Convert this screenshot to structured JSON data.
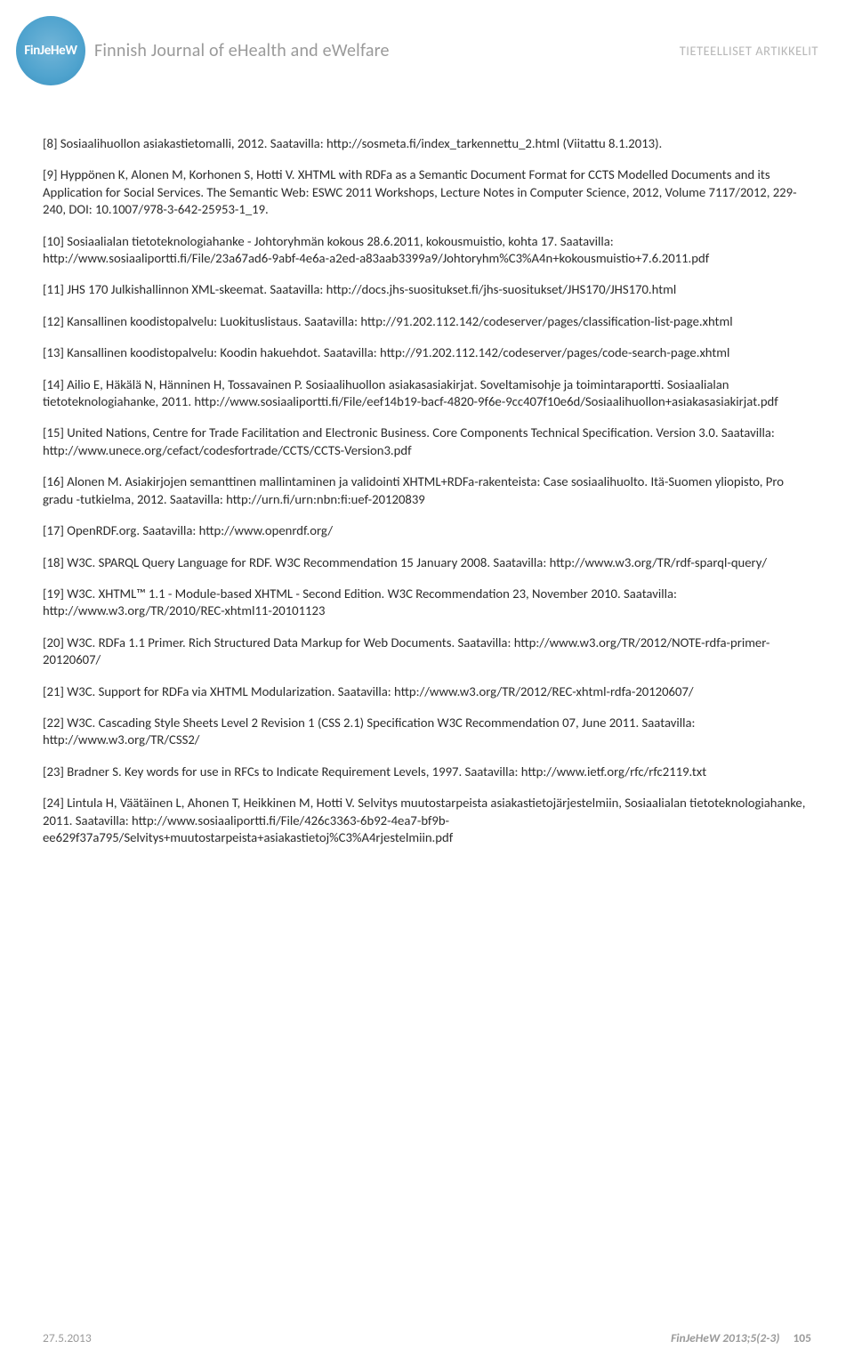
{
  "header": {
    "logo_label": "FinJeHeW",
    "journal_title": "Finnish Journal of eHealth and eWelfare",
    "section_label": "TIETEELLISET ARTIKKELIT"
  },
  "references": [
    "[8] Sosiaalihuollon asiakastietomalli, 2012. Saatavilla: http://sosmeta.fi/index_tarkennettu_2.html (Viitattu 8.1.2013).",
    "[9] Hyppönen K, Alonen M, Korhonen S, Hotti V. XHTML with RDFa as a Semantic Document Format for CCTS Modelled Documents and its Application for Social Services. The Semantic Web: ESWC 2011 Workshops, Lecture Notes in Computer Science, 2012, Volume 7117/2012, 229-240, DOI: 10.1007/978-3-642-25953-1_19.",
    "[10] Sosiaalialan tietoteknologiahanke - Johtoryhmän kokous 28.6.2011, kokousmuistio, kohta 17. Saatavilla: http://www.sosiaaliportti.fi/File/23a67ad6-9abf-4e6a-a2ed-a83aab3399a9/Johtoryhm%C3%A4n+kokousmuistio+7.6.2011.pdf",
    "[11] JHS 170 Julkishallinnon XML-skeemat. Saatavilla: http://docs.jhs-suositukset.fi/jhs-suositukset/JHS170/JHS170.html",
    "[12] Kansallinen koodistopalvelu: Luokituslistaus. Saatavilla: http://91.202.112.142/codeserver/pages/classification-list-page.xhtml",
    "[13] Kansallinen koodistopalvelu: Koodin hakuehdot. Saatavilla: http://91.202.112.142/codeserver/pages/code-search-page.xhtml",
    "[14] Ailio E, Häkälä N, Hänninen H, Tossavainen P. Sosiaalihuollon asiakasasiakirjat. Soveltamisohje ja toimintaraportti. Sosiaalialan tietoteknologiahanke, 2011. http://www.sosiaaliportti.fi/File/eef14b19-bacf-4820-9f6e-9cc407f10e6d/Sosiaalihuollon+asiakasasiakirjat.pdf",
    "[15] United Nations, Centre for Trade Facilitation and Electronic Business. Core Components Technical Specification. Version 3.0. Saatavilla: http://www.unece.org/cefact/codesfortrade/CCTS/CCTS-Version3.pdf",
    "[16] Alonen M. Asiakirjojen semanttinen mallintaminen ja validointi XHTML+RDFa-rakenteista: Case sosiaalihuolto. Itä-Suomen yliopisto, Pro gradu -tutkielma, 2012. Saatavilla: http://urn.fi/urn:nbn:fi:uef-20120839",
    "[17] OpenRDF.org. Saatavilla: http://www.openrdf.org/",
    "[18] W3C. SPARQL Query Language for RDF. W3C Recommendation 15 January 2008. Saatavilla: http://www.w3.org/TR/rdf-sparql-query/",
    "[19] W3C. XHTML™ 1.1 - Module-based XHTML - Second Edition. W3C Recommendation 23, November 2010. Saatavilla: http://www.w3.org/TR/2010/REC-xhtml11-20101123",
    "[20] W3C. RDFa 1.1 Primer. Rich Structured Data Markup for Web Documents. Saatavilla: http://www.w3.org/TR/2012/NOTE-rdfa-primer-20120607/",
    "[21] W3C. Support for RDFa via XHTML Modularization. Saatavilla: http://www.w3.org/TR/2012/REC-xhtml-rdfa-20120607/",
    "[22] W3C. Cascading Style Sheets Level 2 Revision 1 (CSS 2.1) Specification W3C Recommendation 07, June 2011. Saatavilla: http://www.w3.org/TR/CSS2/",
    "[23] Bradner S. Key words for use in RFCs to Indicate Requirement Levels, 1997. Saatavilla: http://www.ietf.org/rfc/rfc2119.txt",
    "[24] Lintula H, Väätäinen L, Ahonen T, Heikkinen M, Hotti V. Selvitys muutostarpeista asiakastietojärjestelmiin, Sosiaalialan tietoteknologiahanke, 2011. Saatavilla: http://www.sosiaaliportti.fi/File/426c3363-6b92-4ea7-bf9b-ee629f37a795/Selvitys+muutostarpeista+asiakastietoj%C3%A4rjestelmiin.pdf"
  ],
  "footer": {
    "date": "27.5.2013",
    "journal": "FinJeHeW 2013;5(2-3)",
    "page": "105"
  },
  "colors": {
    "body_text": "#2b2b2b",
    "muted_text": "#9a9a9a",
    "header_right": "#b7b7b7",
    "logo_gradient_inner": "#72b5d8",
    "logo_gradient_outer": "#3a8fbd",
    "background": "#ffffff"
  },
  "typography": {
    "body_font": "Calibri",
    "body_size_pt": 11,
    "journal_title_size_pt": 15,
    "header_right_size_pt": 11,
    "footer_size_pt": 10
  }
}
